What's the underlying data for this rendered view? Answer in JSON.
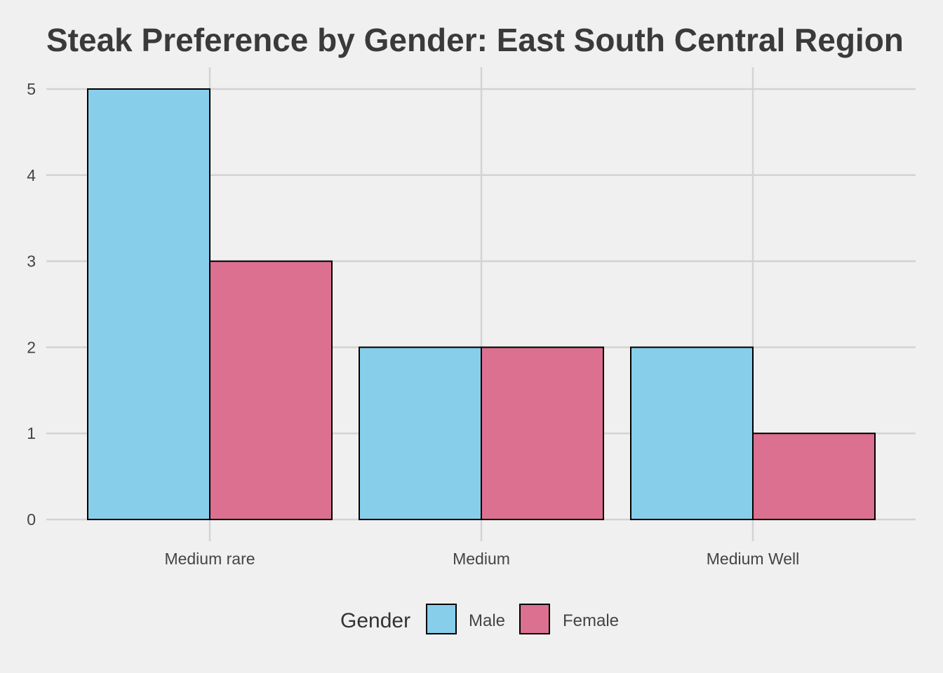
{
  "chart_data": {
    "type": "bar",
    "title": "Steak Preference by Gender: East South Central Region",
    "xlabel": "",
    "ylabel": "",
    "categories": [
      "Medium rare",
      "Medium",
      "Medium Well"
    ],
    "series": [
      {
        "name": "Male",
        "values": [
          5,
          2,
          2
        ],
        "color": "#87ceeb"
      },
      {
        "name": "Female",
        "values": [
          3,
          2,
          1
        ],
        "color": "#db7090"
      }
    ],
    "ylim": [
      0,
      5
    ],
    "yticks": [
      "0",
      "1",
      "2",
      "3",
      "4",
      "5"
    ],
    "grid": true,
    "legend": {
      "title": "Gender",
      "placement": "bottom"
    },
    "colors": {
      "background": "#f0f0f0",
      "grid": "#d3d3d3",
      "bar_outline": "#000000"
    }
  }
}
